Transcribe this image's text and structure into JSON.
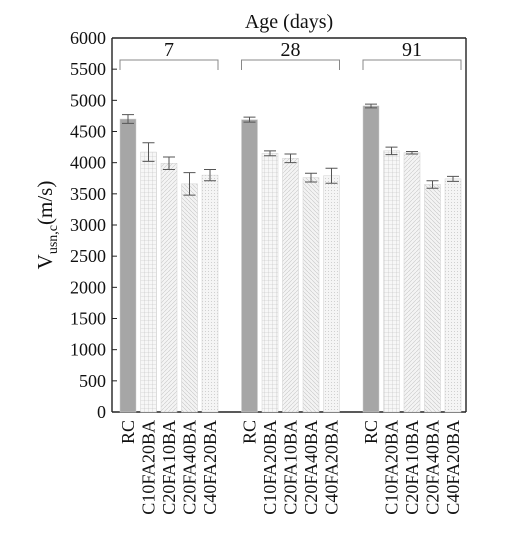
{
  "chart_data": {
    "type": "bar",
    "title": "Age (days)",
    "ylabel": {
      "main": "V",
      "sub": "usn,c",
      "unit": "(m/s)"
    },
    "ylim": [
      0,
      6000
    ],
    "yticks": [
      0,
      500,
      1000,
      1500,
      2000,
      2500,
      3000,
      3500,
      4000,
      4500,
      5000,
      5500,
      6000
    ],
    "grid": false,
    "groups": [
      {
        "label": "7",
        "bars": [
          {
            "category": "RC",
            "value": 4700,
            "err": 70
          },
          {
            "category": "C10FA20BA",
            "value": 4170,
            "err": 150
          },
          {
            "category": "C20FA10BA",
            "value": 3990,
            "err": 100
          },
          {
            "category": "C20FA40BA",
            "value": 3660,
            "err": 180
          },
          {
            "category": "C40FA20BA",
            "value": 3800,
            "err": 90
          }
        ]
      },
      {
        "label": "28",
        "bars": [
          {
            "category": "RC",
            "value": 4690,
            "err": 40
          },
          {
            "category": "C10FA20BA",
            "value": 4150,
            "err": 40
          },
          {
            "category": "C20FA10BA",
            "value": 4070,
            "err": 70
          },
          {
            "category": "C20FA40BA",
            "value": 3760,
            "err": 70
          },
          {
            "category": "C40FA20BA",
            "value": 3790,
            "err": 120
          }
        ]
      },
      {
        "label": "91",
        "bars": [
          {
            "category": "RC",
            "value": 4910,
            "err": 30
          },
          {
            "category": "C10FA20BA",
            "value": 4190,
            "err": 60
          },
          {
            "category": "C20FA10BA",
            "value": 4160,
            "err": 20
          },
          {
            "category": "C20FA40BA",
            "value": 3650,
            "err": 60
          },
          {
            "category": "C40FA20BA",
            "value": 3740,
            "err": 40
          }
        ]
      }
    ],
    "colors": {
      "RC": "#a6a6a6",
      "C10FA20BA": "#f2f2f2",
      "C20FA10BA": "#eaeaea",
      "C20FA40BA": "#e6e6e6",
      "C40FA20BA": "#e9e9e9",
      "error_bar": "#555555",
      "axis": "#222222",
      "bracket": "#888888"
    }
  }
}
